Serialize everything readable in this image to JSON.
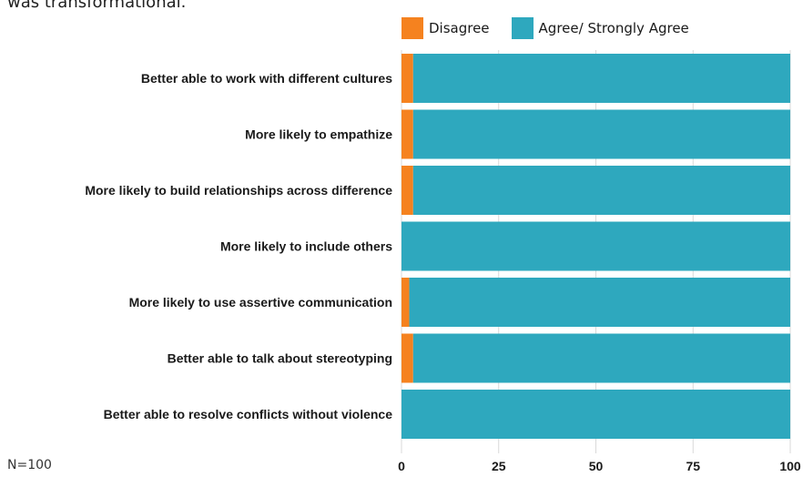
{
  "caption_fragment": "was transformational.",
  "note": "N=100",
  "colors": {
    "disagree": "#F5821F",
    "agree": "#2EA8BE",
    "grid": "#d9d9d9"
  },
  "chart_data": {
    "type": "bar",
    "orientation": "horizontal",
    "stacked": true,
    "legend_position": "top",
    "categories": [
      "Better able to work with different cultures",
      "More likely to empathize",
      "More likely to build relationships across difference",
      "More likely to include others",
      "More likely to use assertive communication",
      "Better able to talk about stereotyping",
      "Better able to resolve conflicts without violence"
    ],
    "series": [
      {
        "name": "Disagree",
        "values": [
          3,
          3,
          3,
          0,
          2,
          3,
          0
        ]
      },
      {
        "name": "Agree/ Strongly Agree",
        "values": [
          97,
          97,
          97,
          100,
          98,
          97,
          100
        ]
      }
    ],
    "xlim": [
      0,
      100
    ],
    "xticks": [
      0,
      25,
      50,
      75,
      100
    ],
    "grid": true
  }
}
